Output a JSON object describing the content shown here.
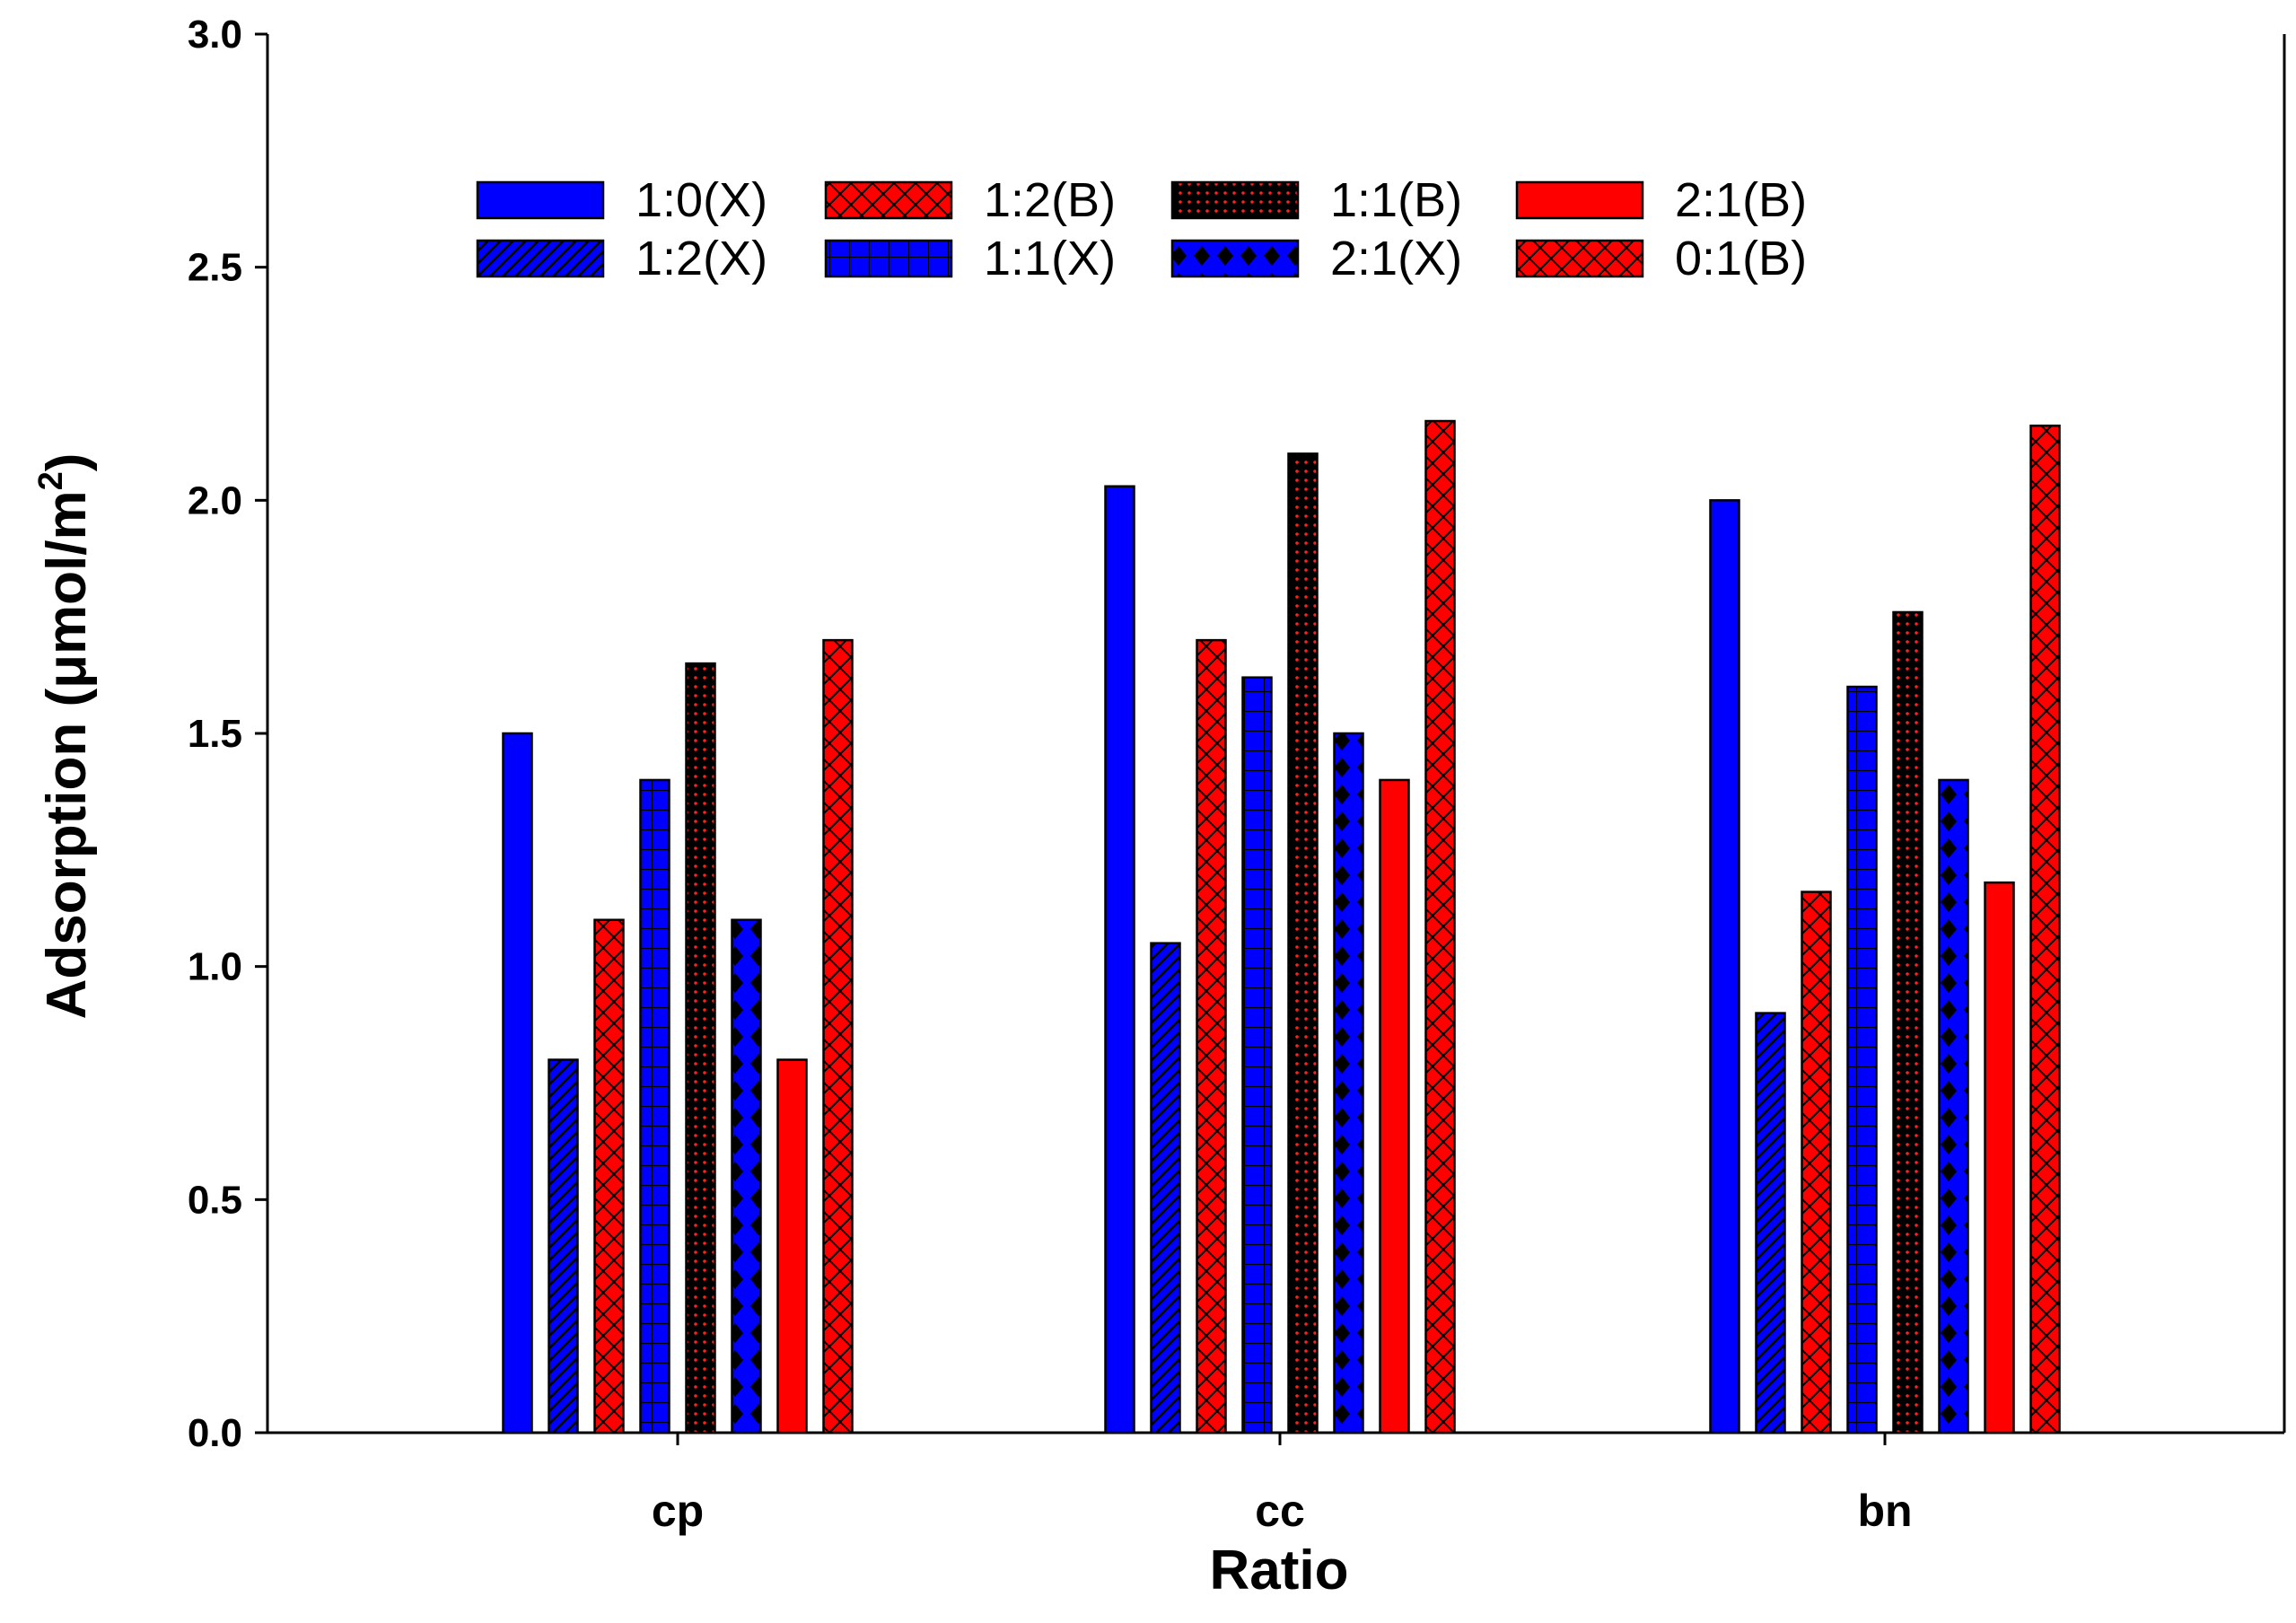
{
  "chart_data": {
    "type": "bar",
    "title": "",
    "xlabel": "Ratio",
    "ylabel": "Adsorption (μmol/m",
    "ylabel_superscript": "2",
    "ylabel_close": ")",
    "ylim": [
      0,
      3.0
    ],
    "yticks": [
      "0.0",
      "0.5",
      "1.0",
      "1.5",
      "2.0",
      "2.5",
      "3.0"
    ],
    "categories": [
      "cp",
      "cc",
      "bn"
    ],
    "legend_position": "top",
    "series": [
      {
        "name": "1:0(X)",
        "color": "#0000ff",
        "pattern": "solid",
        "values": [
          1.5,
          2.03,
          2.0
        ]
      },
      {
        "name": "1:2(X)",
        "color": "#0000ff",
        "pattern": "diagonal",
        "values": [
          0.8,
          1.05,
          0.9
        ]
      },
      {
        "name": "1:2(B)",
        "color": "#ff0000",
        "pattern": "crosshatch",
        "values": [
          1.1,
          1.7,
          1.16
        ]
      },
      {
        "name": "1:1(X)",
        "color": "#0000ff",
        "pattern": "grid",
        "values": [
          1.4,
          1.62,
          1.6
        ]
      },
      {
        "name": "1:1(B)",
        "color": "#000000",
        "pattern": "dots",
        "values": [
          1.65,
          2.1,
          1.76
        ]
      },
      {
        "name": "2:1(X)",
        "color": "#0000ff",
        "pattern": "diamonds",
        "values": [
          1.1,
          1.5,
          1.4
        ]
      },
      {
        "name": "2:1(B)",
        "color": "#ff0000",
        "pattern": "solid",
        "values": [
          0.8,
          1.4,
          1.18
        ]
      },
      {
        "name": "0:1(B)",
        "color": "#ff0000",
        "pattern": "crosshatch",
        "values": [
          1.7,
          2.17,
          2.16
        ]
      }
    ],
    "legend_order": [
      "1:0(X)",
      "1:2(B)",
      "1:1(B)",
      "2:1(B)",
      "1:2(X)",
      "1:1(X)",
      "2:1(X)",
      "0:1(B)"
    ]
  }
}
